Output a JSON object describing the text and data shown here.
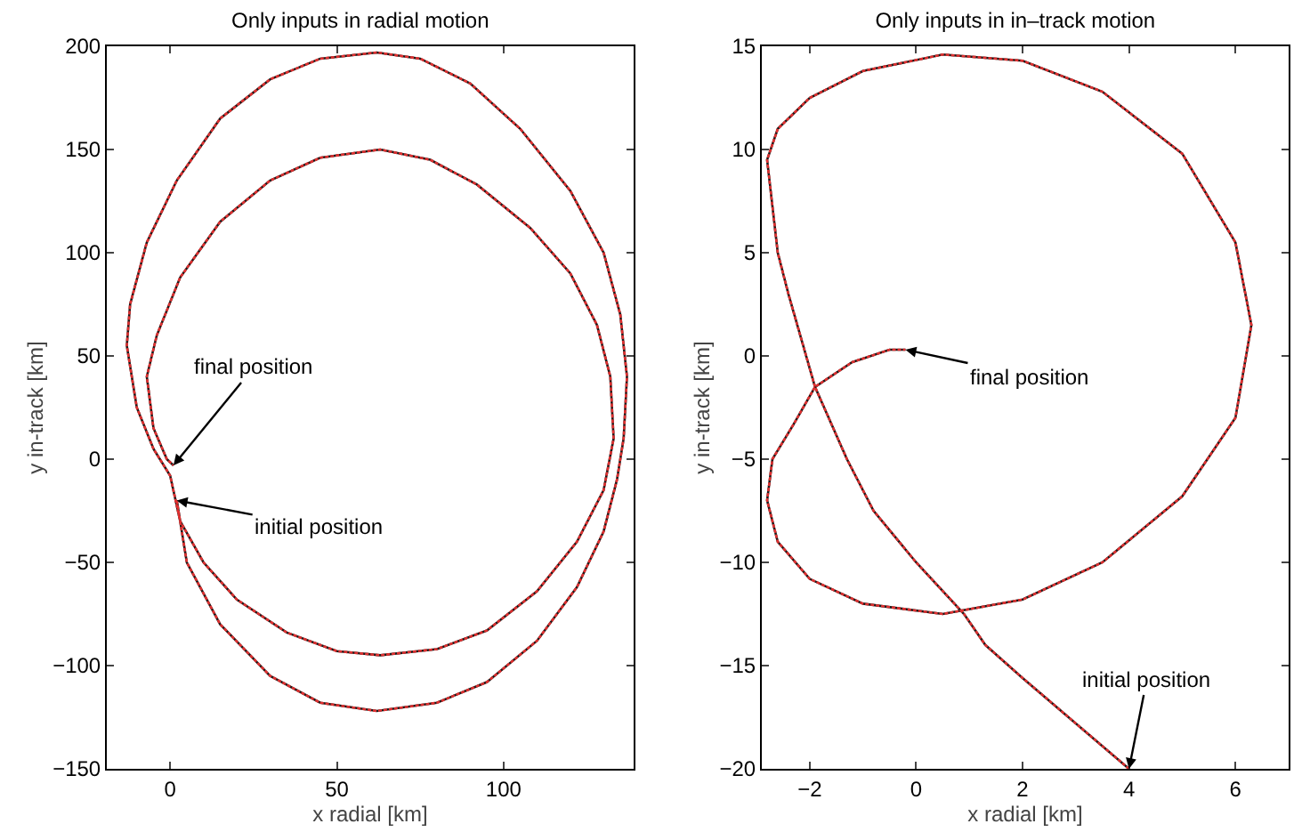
{
  "chart_data": [
    {
      "type": "line",
      "title": "Only inputs in radial motion",
      "xlabel": "x radial [km]",
      "ylabel": "y in-track [km]",
      "xlim": [
        -19,
        139
      ],
      "xticks": [
        0,
        50,
        100
      ],
      "ylim": [
        -150,
        200
      ],
      "yticks": [
        {
          "value": -150,
          "label": "−150"
        },
        {
          "value": -100,
          "label": "−100"
        },
        {
          "value": -50,
          "label": "−50"
        },
        0,
        50,
        100,
        150,
        200
      ],
      "grid": false,
      "x": [
        2,
        5,
        15,
        30,
        45,
        62,
        80,
        95,
        110,
        122,
        130,
        134,
        136,
        137,
        135,
        130,
        120,
        105,
        90,
        75,
        62,
        45,
        30,
        15,
        2,
        -7,
        -12,
        -13,
        -10,
        -5,
        0,
        3,
        10,
        20,
        35,
        50,
        63,
        80,
        95,
        110,
        122,
        130,
        133,
        132,
        128,
        120,
        108,
        92,
        78,
        63,
        45,
        30,
        15,
        3,
        -4,
        -7,
        -5,
        -1,
        1
      ],
      "series": [
        {
          "color": "#1a1a1a",
          "line_style": "solid",
          "values": [
            -20,
            -50,
            -80,
            -105,
            -118,
            -122,
            -118,
            -108,
            -88,
            -62,
            -35,
            -10,
            10,
            40,
            70,
            100,
            130,
            160,
            182,
            194,
            197,
            194,
            184,
            165,
            135,
            105,
            75,
            55,
            25,
            5,
            -8,
            -30,
            -50,
            -68,
            -84,
            -93,
            -95,
            -92,
            -83,
            -64,
            -40,
            -15,
            10,
            40,
            65,
            90,
            112,
            133,
            145,
            150,
            146,
            135,
            115,
            88,
            60,
            40,
            15,
            0,
            -3
          ]
        },
        {
          "color": "#e03030",
          "line_style": "dashed",
          "values": [
            -20,
            -50,
            -80,
            -105,
            -118,
            -122,
            -118,
            -108,
            -88,
            -62,
            -35,
            -10,
            10,
            40,
            70,
            100,
            130,
            160,
            182,
            194,
            197,
            194,
            184,
            165,
            135,
            105,
            75,
            55,
            25,
            5,
            -8,
            -30,
            -50,
            -68,
            -84,
            -93,
            -95,
            -92,
            -83,
            -64,
            -40,
            -15,
            10,
            40,
            65,
            90,
            112,
            133,
            145,
            150,
            146,
            135,
            115,
            88,
            60,
            40,
            15,
            0,
            -3
          ]
        }
      ],
      "annotations": [
        {
          "text": "final position",
          "x": 1,
          "y": -3
        },
        {
          "text": "initial position",
          "x": 2,
          "y": -20
        }
      ]
    },
    {
      "type": "line",
      "title": "Only inputs in in–track motion",
      "xlabel": "x radial [km]",
      "ylabel": "y in-track [km]",
      "xlim": [
        -2.9,
        7
      ],
      "xticks": [
        {
          "value": -2,
          "label": "−2"
        },
        0,
        2,
        4,
        6
      ],
      "ylim": [
        -20,
        15
      ],
      "yticks": [
        {
          "value": -20,
          "label": "−20"
        },
        {
          "value": -15,
          "label": "−15"
        },
        {
          "value": -10,
          "label": "−10"
        },
        {
          "value": -5,
          "label": "−5"
        },
        0,
        5,
        10,
        15
      ],
      "grid": false,
      "x": [
        4,
        3,
        2,
        1.3,
        0.9,
        0,
        -0.8,
        -1.3,
        -1.9,
        -2.4,
        -2.6,
        -2.8,
        -2.6,
        -2,
        -1,
        0.5,
        2,
        3.5,
        5,
        6,
        6.3,
        6,
        5,
        3.5,
        2,
        0.5,
        -1,
        -2,
        -2.6,
        -2.8,
        -2.7,
        -2.3,
        -1.9,
        -1.2,
        -0.5,
        -0.2
      ],
      "series": [
        {
          "color": "#1a1a1a",
          "line_style": "solid",
          "values": [
            -20,
            -17.8,
            -15.6,
            -14,
            -12.5,
            -10,
            -7.5,
            -5,
            -1.5,
            3,
            5,
            9.5,
            11,
            12.5,
            13.8,
            14.6,
            14.3,
            12.8,
            9.8,
            5.5,
            1.5,
            -3,
            -6.8,
            -10,
            -11.8,
            -12.5,
            -12,
            -10.8,
            -9,
            -7,
            -5,
            -3.3,
            -1.5,
            -0.3,
            0.3,
            0.3
          ]
        },
        {
          "color": "#e03030",
          "line_style": "dashed",
          "values": [
            -20,
            -17.8,
            -15.6,
            -14,
            -12.5,
            -10,
            -7.5,
            -5,
            -1.5,
            3,
            5,
            9.5,
            11,
            12.5,
            13.8,
            14.6,
            14.3,
            12.8,
            9.8,
            5.5,
            1.5,
            -3,
            -6.8,
            -10,
            -11.8,
            -12.5,
            -12,
            -10.8,
            -9,
            -7,
            -5,
            -3.3,
            -1.5,
            -0.3,
            0.3,
            0.3
          ]
        }
      ],
      "annotations": [
        {
          "text": "final position",
          "x": -0.2,
          "y": 0.3
        },
        {
          "text": "initial position",
          "x": 4,
          "y": -20
        }
      ]
    }
  ]
}
